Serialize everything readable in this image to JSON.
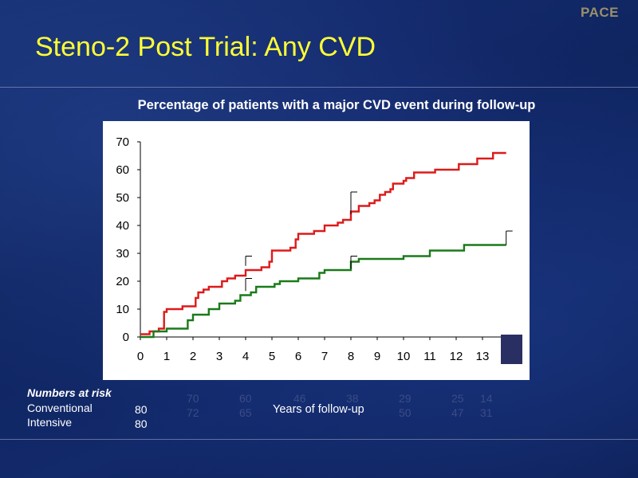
{
  "brand": "PACE",
  "title": "Steno-2 Post Trial: Any CVD",
  "chart_data": {
    "type": "line",
    "title": "Percentage of patients with a major CVD event during follow-up",
    "xlabel": "Years of follow-up",
    "ylabel": "",
    "xlim": [
      0,
      14
    ],
    "ylim": [
      0,
      70
    ],
    "x_ticks": [
      "0",
      "1",
      "2",
      "3",
      "4",
      "5",
      "6",
      "7",
      "8",
      "9",
      "10",
      "11",
      "12",
      "13"
    ],
    "y_ticks": [
      "0",
      "10",
      "20",
      "30",
      "40",
      "50",
      "60",
      "70"
    ],
    "series": [
      {
        "color": "#dd1a1a",
        "x": [
          0,
          0.35,
          0.7,
          0.9,
          1.0,
          1.6,
          2.1,
          2.2,
          2.4,
          2.6,
          3.1,
          3.3,
          3.6,
          4.0,
          4.6,
          4.9,
          5.0,
          5.7,
          5.9,
          6.0,
          6.6,
          7.0,
          7.5,
          7.7,
          8.0,
          8.3,
          8.7,
          8.9,
          9.1,
          9.3,
          9.5,
          9.6,
          10.0,
          10.1,
          10.4,
          11.0,
          11.2,
          11.8,
          12.1,
          12.6,
          12.8,
          13.4,
          13.9
        ],
        "y": [
          1,
          2,
          3,
          9,
          10,
          11,
          14,
          16,
          17,
          18,
          20,
          21,
          22,
          24,
          25,
          27,
          31,
          32,
          35,
          37,
          38,
          40,
          41,
          42,
          45,
          47,
          48,
          49,
          51,
          52,
          53,
          55,
          56,
          57,
          59,
          59,
          60,
          60,
          62,
          62,
          64,
          66,
          66
        ]
      },
      {
        "color": "#1a7a1a",
        "x": [
          0,
          0.5,
          1.0,
          1.8,
          2.0,
          2.6,
          3.0,
          3.6,
          3.8,
          4.2,
          4.4,
          5.1,
          5.3,
          6.0,
          6.8,
          7.0,
          7.5,
          8.0,
          8.3,
          9.0,
          10.0,
          10.5,
          11.0,
          11.5,
          12.0,
          12.3,
          13.0,
          13.9
        ],
        "y": [
          0,
          2,
          3,
          6,
          8,
          10,
          12,
          13,
          15,
          16,
          18,
          19,
          20,
          21,
          23,
          24,
          24,
          27,
          28,
          28,
          29,
          29,
          31,
          31,
          31,
          33,
          33,
          33
        ]
      }
    ],
    "error_bars": [
      {
        "x": 4.0,
        "y": 25.5,
        "high": 29
      },
      {
        "x": 4.0,
        "y": 16.5,
        "high": 21
      },
      {
        "x": 8.0,
        "y": 44,
        "high": 52
      },
      {
        "x": 8.0,
        "y": 24.5,
        "high": 29
      },
      {
        "x": 13.9,
        "y": 33,
        "high": 38
      }
    ]
  },
  "risk_table": {
    "heading": "Numbers at risk",
    "rows": [
      {
        "label": "Conventional",
        "first": "80",
        "values": [
          "70",
          "60",
          "46",
          "38",
          "29",
          "25",
          "14"
        ]
      },
      {
        "label": "Intensive",
        "first": "80",
        "values": [
          "72",
          "65",
          "",
          "",
          "50",
          "47",
          "31"
        ]
      }
    ]
  },
  "colors": {
    "title": "#ffff33",
    "brand": "#9a8f6a",
    "conventional": "#dd1a1a",
    "intensive": "#1a7a1a",
    "legend_box": "#2a2f63"
  }
}
